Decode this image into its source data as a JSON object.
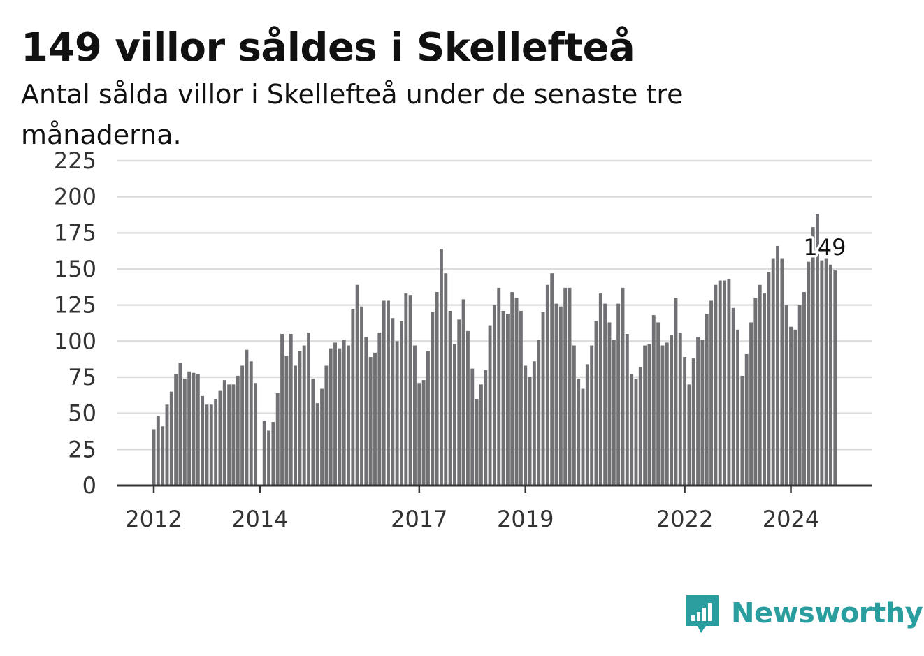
{
  "title": "149 villor såldes i Skellefteå",
  "subtitle": "Antal sålda villor i Skellefteå under de senaste tre månaderna.",
  "brand": {
    "name": "Newsworthy",
    "color": "#2a9d9f",
    "icon": "bar-chart-speech-bubble-icon"
  },
  "colors": {
    "bar": "#717175",
    "highlight": "#1a9e9c",
    "grid": "#dcdcdc",
    "axis": "#333333",
    "text": "#111111"
  },
  "chart_data": {
    "type": "bar",
    "title": "149 villor såldes i Skellefteå",
    "subtitle": "Antal sålda villor i Skellefteå under de senaste tre månaderna.",
    "ylim": [
      0,
      225
    ],
    "y_ticks": [
      0,
      25,
      50,
      75,
      100,
      125,
      150,
      175,
      200,
      225
    ],
    "x_tick_labels": [
      {
        "label": "2012",
        "index": 0
      },
      {
        "label": "2014",
        "index": 24
      },
      {
        "label": "2017",
        "index": 60
      },
      {
        "label": "2019",
        "index": 84
      },
      {
        "label": "2022",
        "index": 120
      },
      {
        "label": "2024",
        "index": 144
      }
    ],
    "grid": true,
    "highlight": {
      "index": 156,
      "value": 149,
      "label": "149"
    },
    "values": [
      39,
      48,
      41,
      56,
      65,
      77,
      85,
      74,
      79,
      78,
      77,
      62,
      56,
      56,
      60,
      66,
      73,
      70,
      70,
      76,
      83,
      94,
      86,
      71,
      null,
      45,
      38,
      44,
      64,
      105,
      90,
      105,
      83,
      93,
      97,
      106,
      74,
      57,
      67,
      83,
      95,
      99,
      95,
      101,
      97,
      122,
      139,
      124,
      103,
      89,
      92,
      106,
      128,
      128,
      116,
      100,
      114,
      133,
      132,
      97,
      71,
      73,
      93,
      120,
      134,
      164,
      147,
      121,
      98,
      115,
      129,
      107,
      81,
      60,
      70,
      80,
      111,
      125,
      137,
      121,
      119,
      134,
      130,
      121,
      83,
      75,
      86,
      101,
      120,
      139,
      147,
      126,
      124,
      137,
      137,
      97,
      74,
      67,
      84,
      97,
      114,
      133,
      126,
      113,
      101,
      126,
      137,
      105,
      77,
      74,
      82,
      97,
      98,
      118,
      113,
      97,
      99,
      104,
      130,
      106,
      89,
      70,
      88,
      103,
      101,
      119,
      128,
      139,
      142,
      142,
      143,
      123,
      108,
      76,
      91,
      113,
      130,
      139,
      133,
      148,
      157,
      166,
      157,
      125,
      110,
      108,
      125,
      134,
      155,
      179,
      188,
      156,
      157,
      153,
      149
    ]
  }
}
